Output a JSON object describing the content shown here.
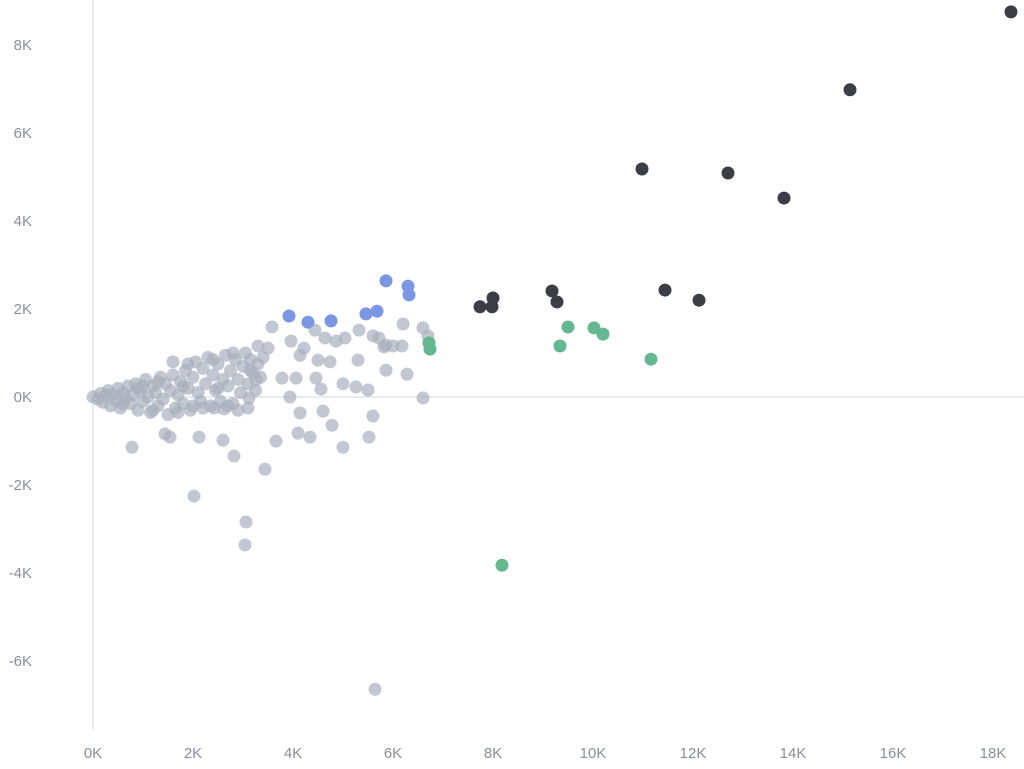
{
  "chart_data": {
    "type": "scatter",
    "title": "",
    "xlabel": "",
    "ylabel": "",
    "xlim": [
      -1860,
      18620
    ],
    "ylim": [
      -8450,
      9020
    ],
    "x_ticks": [
      0,
      2000,
      4000,
      6000,
      8000,
      10000,
      12000,
      14000,
      16000,
      18000
    ],
    "x_tick_labels": [
      "0K",
      "2K",
      "4K",
      "6K",
      "8K",
      "10K",
      "12K",
      "14K",
      "16K",
      "18K"
    ],
    "y_ticks": [
      -6000,
      -4000,
      -2000,
      0,
      2000,
      4000,
      6000,
      8000
    ],
    "y_tick_labels": [
      "-6K",
      "-4K",
      "-2K",
      "0K",
      "2K",
      "4K",
      "6K",
      "8K"
    ],
    "grid": "zero lines only",
    "legend": "none",
    "colors": {
      "gray": "#a9afbe",
      "blue": "#7b96e3",
      "green": "#63b891",
      "dark": "#3c3d45",
      "axis_text": "#8a8f9a",
      "zero_line": "#e3e5ea"
    },
    "series": [
      {
        "color_key": "gray",
        "points": [
          [
            2020,
            -2250
          ],
          [
            3060,
            -2840
          ],
          [
            3040,
            -3360
          ],
          [
            5640,
            -6640
          ],
          [
            3440,
            -1640
          ],
          [
            2820,
            -1340
          ],
          [
            780,
            -1140
          ],
          [
            5000,
            -1140
          ],
          [
            3660,
            -1000
          ],
          [
            4340,
            -910
          ],
          [
            4100,
            -820
          ],
          [
            5520,
            -910
          ],
          [
            2120,
            -910
          ],
          [
            2600,
            -980
          ],
          [
            1440,
            -840
          ],
          [
            1540,
            -910
          ],
          [
            4140,
            -360
          ],
          [
            4600,
            -320
          ],
          [
            4780,
            -640
          ],
          [
            5600,
            -430
          ],
          [
            6600,
            -20
          ],
          [
            6280,
            520
          ],
          [
            5860,
            610
          ],
          [
            5500,
            160
          ],
          [
            5260,
            230
          ],
          [
            5000,
            300
          ],
          [
            4560,
            180
          ],
          [
            3940,
            0
          ],
          [
            4460,
            430
          ],
          [
            4060,
            430
          ],
          [
            3780,
            430
          ],
          [
            5300,
            840
          ],
          [
            4740,
            800
          ],
          [
            4500,
            840
          ],
          [
            4140,
            950
          ],
          [
            4220,
            1110
          ],
          [
            3960,
            1270
          ],
          [
            3580,
            1590
          ],
          [
            4440,
            1520
          ],
          [
            4640,
            1340
          ],
          [
            4860,
            1270
          ],
          [
            5040,
            1340
          ],
          [
            5320,
            1520
          ],
          [
            5600,
            1390
          ],
          [
            5720,
            1340
          ],
          [
            5820,
            1140
          ],
          [
            6000,
            1160
          ],
          [
            6200,
            1660
          ],
          [
            6600,
            1570
          ],
          [
            6700,
            1390
          ],
          [
            6180,
            1160
          ],
          [
            5860,
            1180
          ],
          [
            3500,
            1110
          ],
          [
            3300,
            1160
          ],
          [
            3140,
            610
          ],
          [
            3260,
            390
          ],
          [
            3120,
            -20
          ],
          [
            3100,
            -250
          ],
          [
            2900,
            -300
          ],
          [
            2620,
            -270
          ],
          [
            2420,
            -250
          ],
          [
            0,
            0
          ],
          [
            100,
            -50
          ],
          [
            150,
            80
          ],
          [
            200,
            -120
          ],
          [
            250,
            40
          ],
          [
            300,
            150
          ],
          [
            350,
            -200
          ],
          [
            400,
            60
          ],
          [
            450,
            -80
          ],
          [
            500,
            200
          ],
          [
            550,
            -250
          ],
          [
            600,
            100
          ],
          [
            650,
            -30
          ],
          [
            700,
            250
          ],
          [
            750,
            -150
          ],
          [
            800,
            50
          ],
          [
            850,
            300
          ],
          [
            900,
            -300
          ],
          [
            950,
            150
          ],
          [
            1000,
            -100
          ],
          [
            1050,
            400
          ],
          [
            1100,
            0
          ],
          [
            1150,
            -350
          ],
          [
            1200,
            250
          ],
          [
            1250,
            100
          ],
          [
            1300,
            -200
          ],
          [
            1350,
            450
          ],
          [
            1400,
            -50
          ],
          [
            1450,
            300
          ],
          [
            1500,
            -400
          ],
          [
            1550,
            150
          ],
          [
            1600,
            500
          ],
          [
            1650,
            -250
          ],
          [
            1700,
            50
          ],
          [
            1750,
            350
          ],
          [
            1800,
            -150
          ],
          [
            1850,
            600
          ],
          [
            1900,
            200
          ],
          [
            1950,
            -300
          ],
          [
            2000,
            450
          ],
          [
            2050,
            800
          ],
          [
            2100,
            100
          ],
          [
            2150,
            -100
          ],
          [
            2200,
            650
          ],
          [
            2250,
            300
          ],
          [
            2300,
            900
          ],
          [
            2350,
            -200
          ],
          [
            2400,
            500
          ],
          [
            2450,
            150
          ],
          [
            2500,
            750
          ],
          [
            2550,
            -100
          ],
          [
            2600,
            400
          ],
          [
            2650,
            950
          ],
          [
            2700,
            250
          ],
          [
            2750,
            600
          ],
          [
            2800,
            -150
          ],
          [
            2850,
            850
          ],
          [
            2900,
            400
          ],
          [
            2950,
            100
          ],
          [
            3000,
            700
          ],
          [
            3050,
            1000
          ],
          [
            3100,
            300
          ],
          [
            3150,
            850
          ],
          [
            3200,
            550
          ],
          [
            3250,
            150
          ],
          [
            3300,
            750
          ],
          [
            3350,
            450
          ],
          [
            3400,
            900
          ],
          [
            1200,
            -300
          ],
          [
            1700,
            -350
          ],
          [
            2200,
            -250
          ],
          [
            900,
            200
          ],
          [
            1300,
            350
          ],
          [
            1800,
            250
          ],
          [
            2500,
            200
          ],
          [
            600,
            -150
          ],
          [
            1000,
            250
          ],
          [
            2000,
            -200
          ],
          [
            2700,
            -200
          ],
          [
            1900,
            750
          ],
          [
            1600,
            800
          ],
          [
            2400,
            850
          ],
          [
            2800,
            1000
          ]
        ]
      },
      {
        "color_key": "blue",
        "points": [
          [
            3920,
            1840
          ],
          [
            4300,
            1700
          ],
          [
            4760,
            1730
          ],
          [
            5460,
            1890
          ],
          [
            5680,
            1950
          ],
          [
            5860,
            2640
          ],
          [
            6300,
            2520
          ],
          [
            6320,
            2320
          ]
        ]
      },
      {
        "color_key": "green",
        "points": [
          [
            6720,
            1230
          ],
          [
            6740,
            1090
          ],
          [
            8180,
            -3820
          ],
          [
            9340,
            1160
          ],
          [
            9500,
            1590
          ],
          [
            10020,
            1570
          ],
          [
            10200,
            1430
          ],
          [
            11160,
            860
          ]
        ]
      },
      {
        "color_key": "dark",
        "points": [
          [
            7740,
            2050
          ],
          [
            8000,
            2250
          ],
          [
            7980,
            2050
          ],
          [
            9180,
            2410
          ],
          [
            9280,
            2160
          ],
          [
            10980,
            5180
          ],
          [
            11440,
            2430
          ],
          [
            12120,
            2200
          ],
          [
            12700,
            5090
          ],
          [
            13820,
            4520
          ],
          [
            15140,
            6980
          ],
          [
            18360,
            8750
          ]
        ]
      }
    ]
  }
}
